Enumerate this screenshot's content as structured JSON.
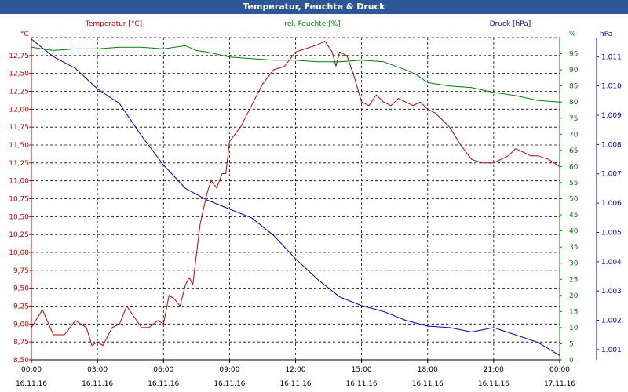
{
  "window": {
    "title": "Temperatur, Feuchte & Druck"
  },
  "colors": {
    "title_bg": "#2b5797",
    "temperature": "#c00000",
    "humidity": "#008000",
    "pressure": "#0000c0",
    "grid": "#000000"
  },
  "chart_data": {
    "type": "line",
    "title": "Temperatur, Feuchte & Druck",
    "grid": true,
    "x_ticks": [
      {
        "time": "00:00",
        "date": "16.11.16"
      },
      {
        "time": "03:00",
        "date": "16.11.16"
      },
      {
        "time": "06:00",
        "date": "16.11.16"
      },
      {
        "time": "09:00",
        "date": "16.11.16"
      },
      {
        "time": "12:00",
        "date": "16.11.16"
      },
      {
        "time": "15:00",
        "date": "16.11.16"
      },
      {
        "time": "18:00",
        "date": "16.11.16"
      },
      {
        "time": "21:00",
        "date": "16.11.16"
      },
      {
        "time": "00:00",
        "date": "17.11.16"
      }
    ],
    "xlim": [
      "2016-11-16T00:00",
      "2016-11-17T00:00"
    ],
    "axes": [
      {
        "id": "temp",
        "side": "left",
        "label": "Temperatur [°C]",
        "unit": "°C",
        "min": 8.5,
        "max": 13.0,
        "ticks": [
          "8,50",
          "8,75",
          "9,00",
          "9,25",
          "9,50",
          "9,75",
          "10,00",
          "10,25",
          "10,50",
          "10,75",
          "11,00",
          "11,25",
          "11,50",
          "11,75",
          "12,00",
          "12,25",
          "12,50",
          "12,75"
        ]
      },
      {
        "id": "hum",
        "side": "right",
        "label": "rel. Feuchte [%]",
        "unit": "%",
        "min": 0,
        "max": 100,
        "ticks": [
          "0",
          "5",
          "10",
          "15",
          "20",
          "25",
          "30",
          "35",
          "40",
          "45",
          "50",
          "55",
          "60",
          "65",
          "70",
          "75",
          "80",
          "85",
          "90",
          "95"
        ]
      },
      {
        "id": "press",
        "side": "right-outer",
        "label": "Druck [hPa]",
        "unit": "hPa",
        "min": 1000.65,
        "max": 1011.65,
        "ticks": [
          "1.001",
          "1.002",
          "1.003",
          "1.004",
          "1.005",
          "1.006",
          "1.007",
          "1.008",
          "1.009",
          "1.010",
          "1.011"
        ]
      }
    ],
    "series": [
      {
        "name": "Temperatur [°C]",
        "axis": "temp",
        "color": "#c00000",
        "x": [
          "2016-11-16T00:00",
          "2016-11-16T00:30",
          "2016-11-16T01:00",
          "2016-11-16T01:30",
          "2016-11-16T02:00",
          "2016-11-16T02:30",
          "2016-11-16T02:45",
          "2016-11-16T03:00",
          "2016-11-16T03:15",
          "2016-11-16T03:40",
          "2016-11-16T04:00",
          "2016-11-16T04:20",
          "2016-11-16T05:00",
          "2016-11-16T05:20",
          "2016-11-16T05:45",
          "2016-11-16T06:00",
          "2016-11-16T06:15",
          "2016-11-16T06:30",
          "2016-11-16T06:45",
          "2016-11-16T07:00",
          "2016-11-16T07:10",
          "2016-11-16T07:20",
          "2016-11-16T07:40",
          "2016-11-16T08:00",
          "2016-11-16T08:10",
          "2016-11-16T08:25",
          "2016-11-16T08:40",
          "2016-11-16T08:50",
          "2016-11-16T09:00",
          "2016-11-16T09:30",
          "2016-11-16T10:00",
          "2016-11-16T10:30",
          "2016-11-16T11:00",
          "2016-11-16T11:30",
          "2016-11-16T12:00",
          "2016-11-16T12:30",
          "2016-11-16T13:00",
          "2016-11-16T13:20",
          "2016-11-16T13:40",
          "2016-11-16T13:50",
          "2016-11-16T14:00",
          "2016-11-16T14:20",
          "2016-11-16T14:40",
          "2016-11-16T15:00",
          "2016-11-16T15:20",
          "2016-11-16T15:40",
          "2016-11-16T16:00",
          "2016-11-16T16:20",
          "2016-11-16T16:40",
          "2016-11-16T17:00",
          "2016-11-16T17:20",
          "2016-11-16T17:40",
          "2016-11-16T18:00",
          "2016-11-16T18:20",
          "2016-11-16T18:40",
          "2016-11-16T19:00",
          "2016-11-16T19:30",
          "2016-11-16T20:00",
          "2016-11-16T20:30",
          "2016-11-16T21:00",
          "2016-11-16T21:20",
          "2016-11-16T21:40",
          "2016-11-16T22:00",
          "2016-11-16T22:20",
          "2016-11-16T22:40",
          "2016-11-16T23:00",
          "2016-11-16T23:30",
          "2016-11-17T00:00"
        ],
        "values": [
          8.95,
          9.2,
          8.85,
          8.85,
          9.05,
          8.95,
          8.7,
          8.75,
          8.7,
          8.95,
          9.0,
          9.25,
          8.95,
          8.95,
          9.05,
          9.0,
          9.4,
          9.35,
          9.25,
          9.55,
          9.65,
          9.55,
          10.4,
          10.85,
          11.0,
          10.9,
          11.1,
          11.1,
          11.55,
          11.75,
          12.05,
          12.35,
          12.55,
          12.6,
          12.8,
          12.85,
          12.9,
          12.95,
          12.8,
          12.6,
          12.8,
          12.75,
          12.45,
          12.1,
          12.05,
          12.2,
          12.1,
          12.05,
          12.15,
          12.1,
          12.05,
          12.1,
          12.0,
          11.95,
          11.85,
          11.75,
          11.5,
          11.3,
          11.25,
          11.25,
          11.3,
          11.35,
          11.45,
          11.4,
          11.35,
          11.35,
          11.3,
          11.2
        ]
      },
      {
        "name": "rel. Feuchte [%]",
        "axis": "hum",
        "color": "#008000",
        "x": [
          "2016-11-16T00:00",
          "2016-11-16T01:00",
          "2016-11-16T02:00",
          "2016-11-16T03:00",
          "2016-11-16T04:00",
          "2016-11-16T05:00",
          "2016-11-16T06:00",
          "2016-11-16T07:00",
          "2016-11-16T07:30",
          "2016-11-16T08:00",
          "2016-11-16T09:00",
          "2016-11-16T10:00",
          "2016-11-16T11:00",
          "2016-11-16T12:00",
          "2016-11-16T13:00",
          "2016-11-16T14:00",
          "2016-11-16T15:00",
          "2016-11-16T16:00",
          "2016-11-16T17:00",
          "2016-11-16T17:30",
          "2016-11-16T18:00",
          "2016-11-16T19:00",
          "2016-11-16T20:00",
          "2016-11-16T21:00",
          "2016-11-16T22:00",
          "2016-11-16T23:00",
          "2016-11-17T00:00"
        ],
        "values": [
          97,
          96,
          96.5,
          96.5,
          97,
          97,
          96.5,
          97.5,
          96,
          95.5,
          94,
          93.5,
          93,
          93,
          92.5,
          92.5,
          93,
          92.5,
          90,
          88.5,
          86,
          85,
          84.5,
          83,
          82,
          80.5,
          80
        ]
      },
      {
        "name": "Druck [hPa]",
        "axis": "press",
        "color": "#0000c0",
        "x": [
          "2016-11-16T00:00",
          "2016-11-16T00:30",
          "2016-11-16T01:00",
          "2016-11-16T02:00",
          "2016-11-16T03:00",
          "2016-11-16T04:00",
          "2016-11-16T05:00",
          "2016-11-16T06:00",
          "2016-11-16T07:00",
          "2016-11-16T08:00",
          "2016-11-16T09:00",
          "2016-11-16T10:00",
          "2016-11-16T11:00",
          "2016-11-16T12:00",
          "2016-11-16T13:00",
          "2016-11-16T14:00",
          "2016-11-16T15:00",
          "2016-11-16T16:00",
          "2016-11-16T17:00",
          "2016-11-16T18:00",
          "2016-11-16T19:00",
          "2016-11-16T20:00",
          "2016-11-16T21:00",
          "2016-11-16T22:00",
          "2016-11-16T23:00",
          "2016-11-17T00:00"
        ],
        "values": [
          1011.6,
          1011.3,
          1011.0,
          1010.6,
          1009.9,
          1009.4,
          1008.3,
          1007.3,
          1006.5,
          1006.1,
          1005.8,
          1005.5,
          1004.9,
          1004.1,
          1003.4,
          1002.8,
          1002.5,
          1002.3,
          1002.0,
          1001.8,
          1001.75,
          1001.6,
          1001.75,
          1001.5,
          1001.25,
          1000.8
        ]
      }
    ]
  }
}
